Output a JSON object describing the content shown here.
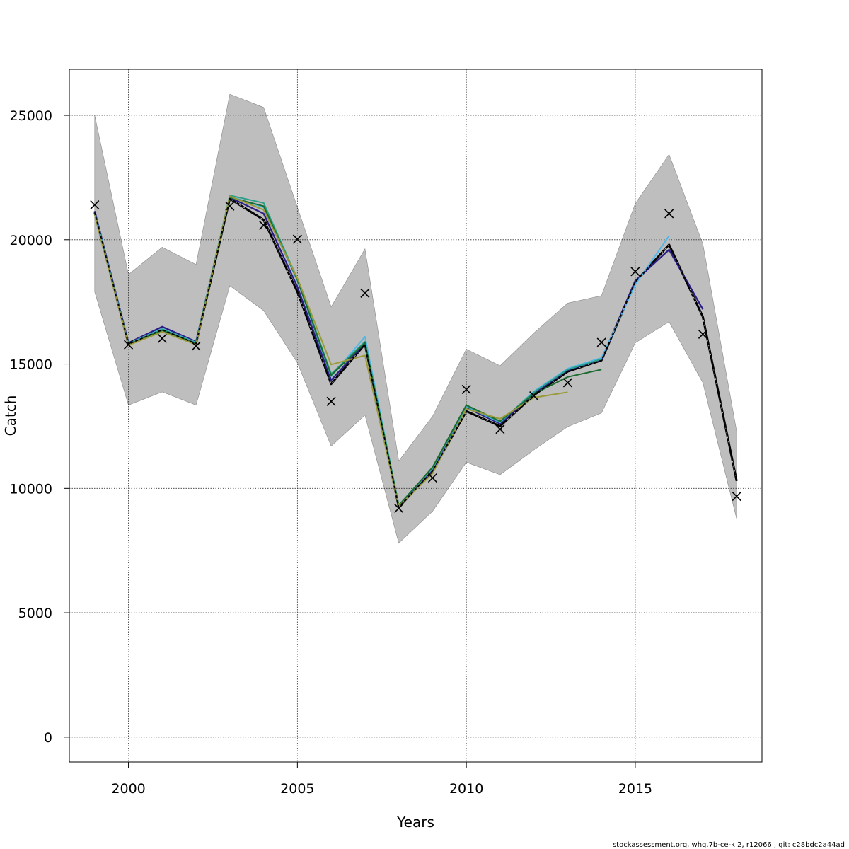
{
  "chart_data": {
    "type": "line",
    "title": "",
    "xlabel": "Years",
    "ylabel": "Catch",
    "xlim": [
      1998.25,
      2018.75
    ],
    "ylim": [
      -1000,
      26850
    ],
    "x_ticks": [
      2000,
      2005,
      2010,
      2015
    ],
    "x_tick_labels": [
      "2000",
      "2005",
      "2010",
      "2015"
    ],
    "y_ticks": [
      0,
      5000,
      10000,
      15000,
      20000,
      25000
    ],
    "y_tick_labels": [
      "0",
      "5000",
      "10000",
      "15000",
      "20000",
      "25000"
    ],
    "grid": true,
    "legend": "none",
    "band_color": "#bebebe",
    "band": {
      "x": [
        1999,
        2000,
        2001,
        2002,
        2003,
        2004,
        2005,
        2006,
        2007,
        2008,
        2009,
        2010,
        2011,
        2012,
        2013,
        2014,
        2015,
        2016,
        2017,
        2018
      ],
      "lower": [
        17900,
        13350,
        13880,
        13350,
        18150,
        17150,
        15050,
        11700,
        12950,
        7800,
        9080,
        11050,
        10550,
        11550,
        12480,
        13030,
        15850,
        16700,
        14250,
        8780
      ],
      "upper": [
        25000,
        18600,
        19700,
        19000,
        25850,
        25320,
        21300,
        17300,
        19630,
        11100,
        12900,
        15600,
        14930,
        16250,
        17450,
        17750,
        21450,
        23430,
        19830,
        12300
      ]
    },
    "observations": {
      "marker": "x",
      "x": [
        1999,
        2000,
        2001,
        2002,
        2003,
        2004,
        2005,
        2006,
        2007,
        2008,
        2009,
        2010,
        2011,
        2012,
        2013,
        2014,
        2015,
        2016,
        2017,
        2018
      ],
      "y": [
        21400,
        15780,
        16030,
        15720,
        21350,
        20580,
        20020,
        13500,
        17850,
        9200,
        10420,
        13980,
        12380,
        13720,
        14250,
        15870,
        18720,
        21050,
        16200,
        9680
      ]
    },
    "series": [
      {
        "color": "#000000",
        "dashed": true,
        "width": 3,
        "x": [
          1999,
          2000,
          2001,
          2002,
          2003,
          2004,
          2005,
          2006,
          2007,
          2008,
          2009,
          2010,
          2011,
          2012,
          2013,
          2014,
          2015,
          2016,
          2017,
          2018
        ],
        "y": [
          21100,
          15800,
          16380,
          15820,
          21650,
          20800,
          17900,
          14200,
          15800,
          9250,
          10700,
          13100,
          12500,
          13750,
          14700,
          15150,
          18300,
          19800,
          16900,
          10300
        ]
      },
      {
        "color": "#2b1f85",
        "dashed": false,
        "width": 2.3,
        "x": [
          1999,
          2000,
          2001,
          2002,
          2003,
          2004,
          2005,
          2006,
          2007,
          2008,
          2009,
          2010,
          2011,
          2012,
          2013,
          2014,
          2015,
          2016,
          2017
        ],
        "y": [
          21150,
          15850,
          16500,
          15900,
          21700,
          21050,
          18100,
          14350,
          15850,
          9300,
          10750,
          13250,
          12600,
          13800,
          14750,
          15180,
          18350,
          19600,
          17200
        ]
      },
      {
        "color": "#4fb8e8",
        "dashed": false,
        "width": 2,
        "x": [
          1999,
          2000,
          2001,
          2002,
          2003,
          2004,
          2005,
          2006,
          2007,
          2008,
          2009,
          2010,
          2011,
          2012,
          2013,
          2014,
          2015,
          2016
        ],
        "y": [
          21100,
          15820,
          16420,
          15870,
          21750,
          21300,
          18350,
          14500,
          16100,
          9320,
          10800,
          13300,
          12650,
          13900,
          14820,
          15250,
          18200,
          20150
        ]
      },
      {
        "color": "#2aa088",
        "dashed": false,
        "width": 2,
        "x": [
          1999,
          2000,
          2001,
          2002,
          2003,
          2004,
          2005,
          2006,
          2007,
          2008,
          2009,
          2010,
          2011,
          2012,
          2013,
          2014
        ],
        "y": [
          21050,
          15800,
          16400,
          15850,
          21780,
          21480,
          18420,
          14600,
          15900,
          9330,
          10820,
          13330,
          12680,
          13870,
          14780,
          15200
        ]
      },
      {
        "color": "#1a6b2f",
        "dashed": false,
        "width": 2,
        "x": [
          1999,
          2000,
          2001,
          2002,
          2003,
          2004,
          2005,
          2006,
          2007,
          2008,
          2009,
          2010,
          2011,
          2012,
          2013,
          2014
        ],
        "y": [
          21000,
          15790,
          16350,
          15830,
          21700,
          21350,
          18380,
          14550,
          15850,
          9310,
          10850,
          13350,
          12700,
          13800,
          14480,
          14780
        ]
      },
      {
        "color": "#9a9a3a",
        "dashed": false,
        "width": 2,
        "x": [
          1999,
          2000,
          2001,
          2002,
          2003,
          2004,
          2005,
          2006,
          2007,
          2008,
          2009,
          2010,
          2011,
          2012,
          2013
        ],
        "y": [
          21000,
          15760,
          16300,
          15780,
          21750,
          21200,
          18450,
          14980,
          15350,
          9280,
          10600,
          13200,
          12800,
          13650,
          13870
        ]
      }
    ]
  },
  "footer": "stockassessment.org, whg.7b-ce-k  2, r12066 , git: c28bdc2a44ad"
}
